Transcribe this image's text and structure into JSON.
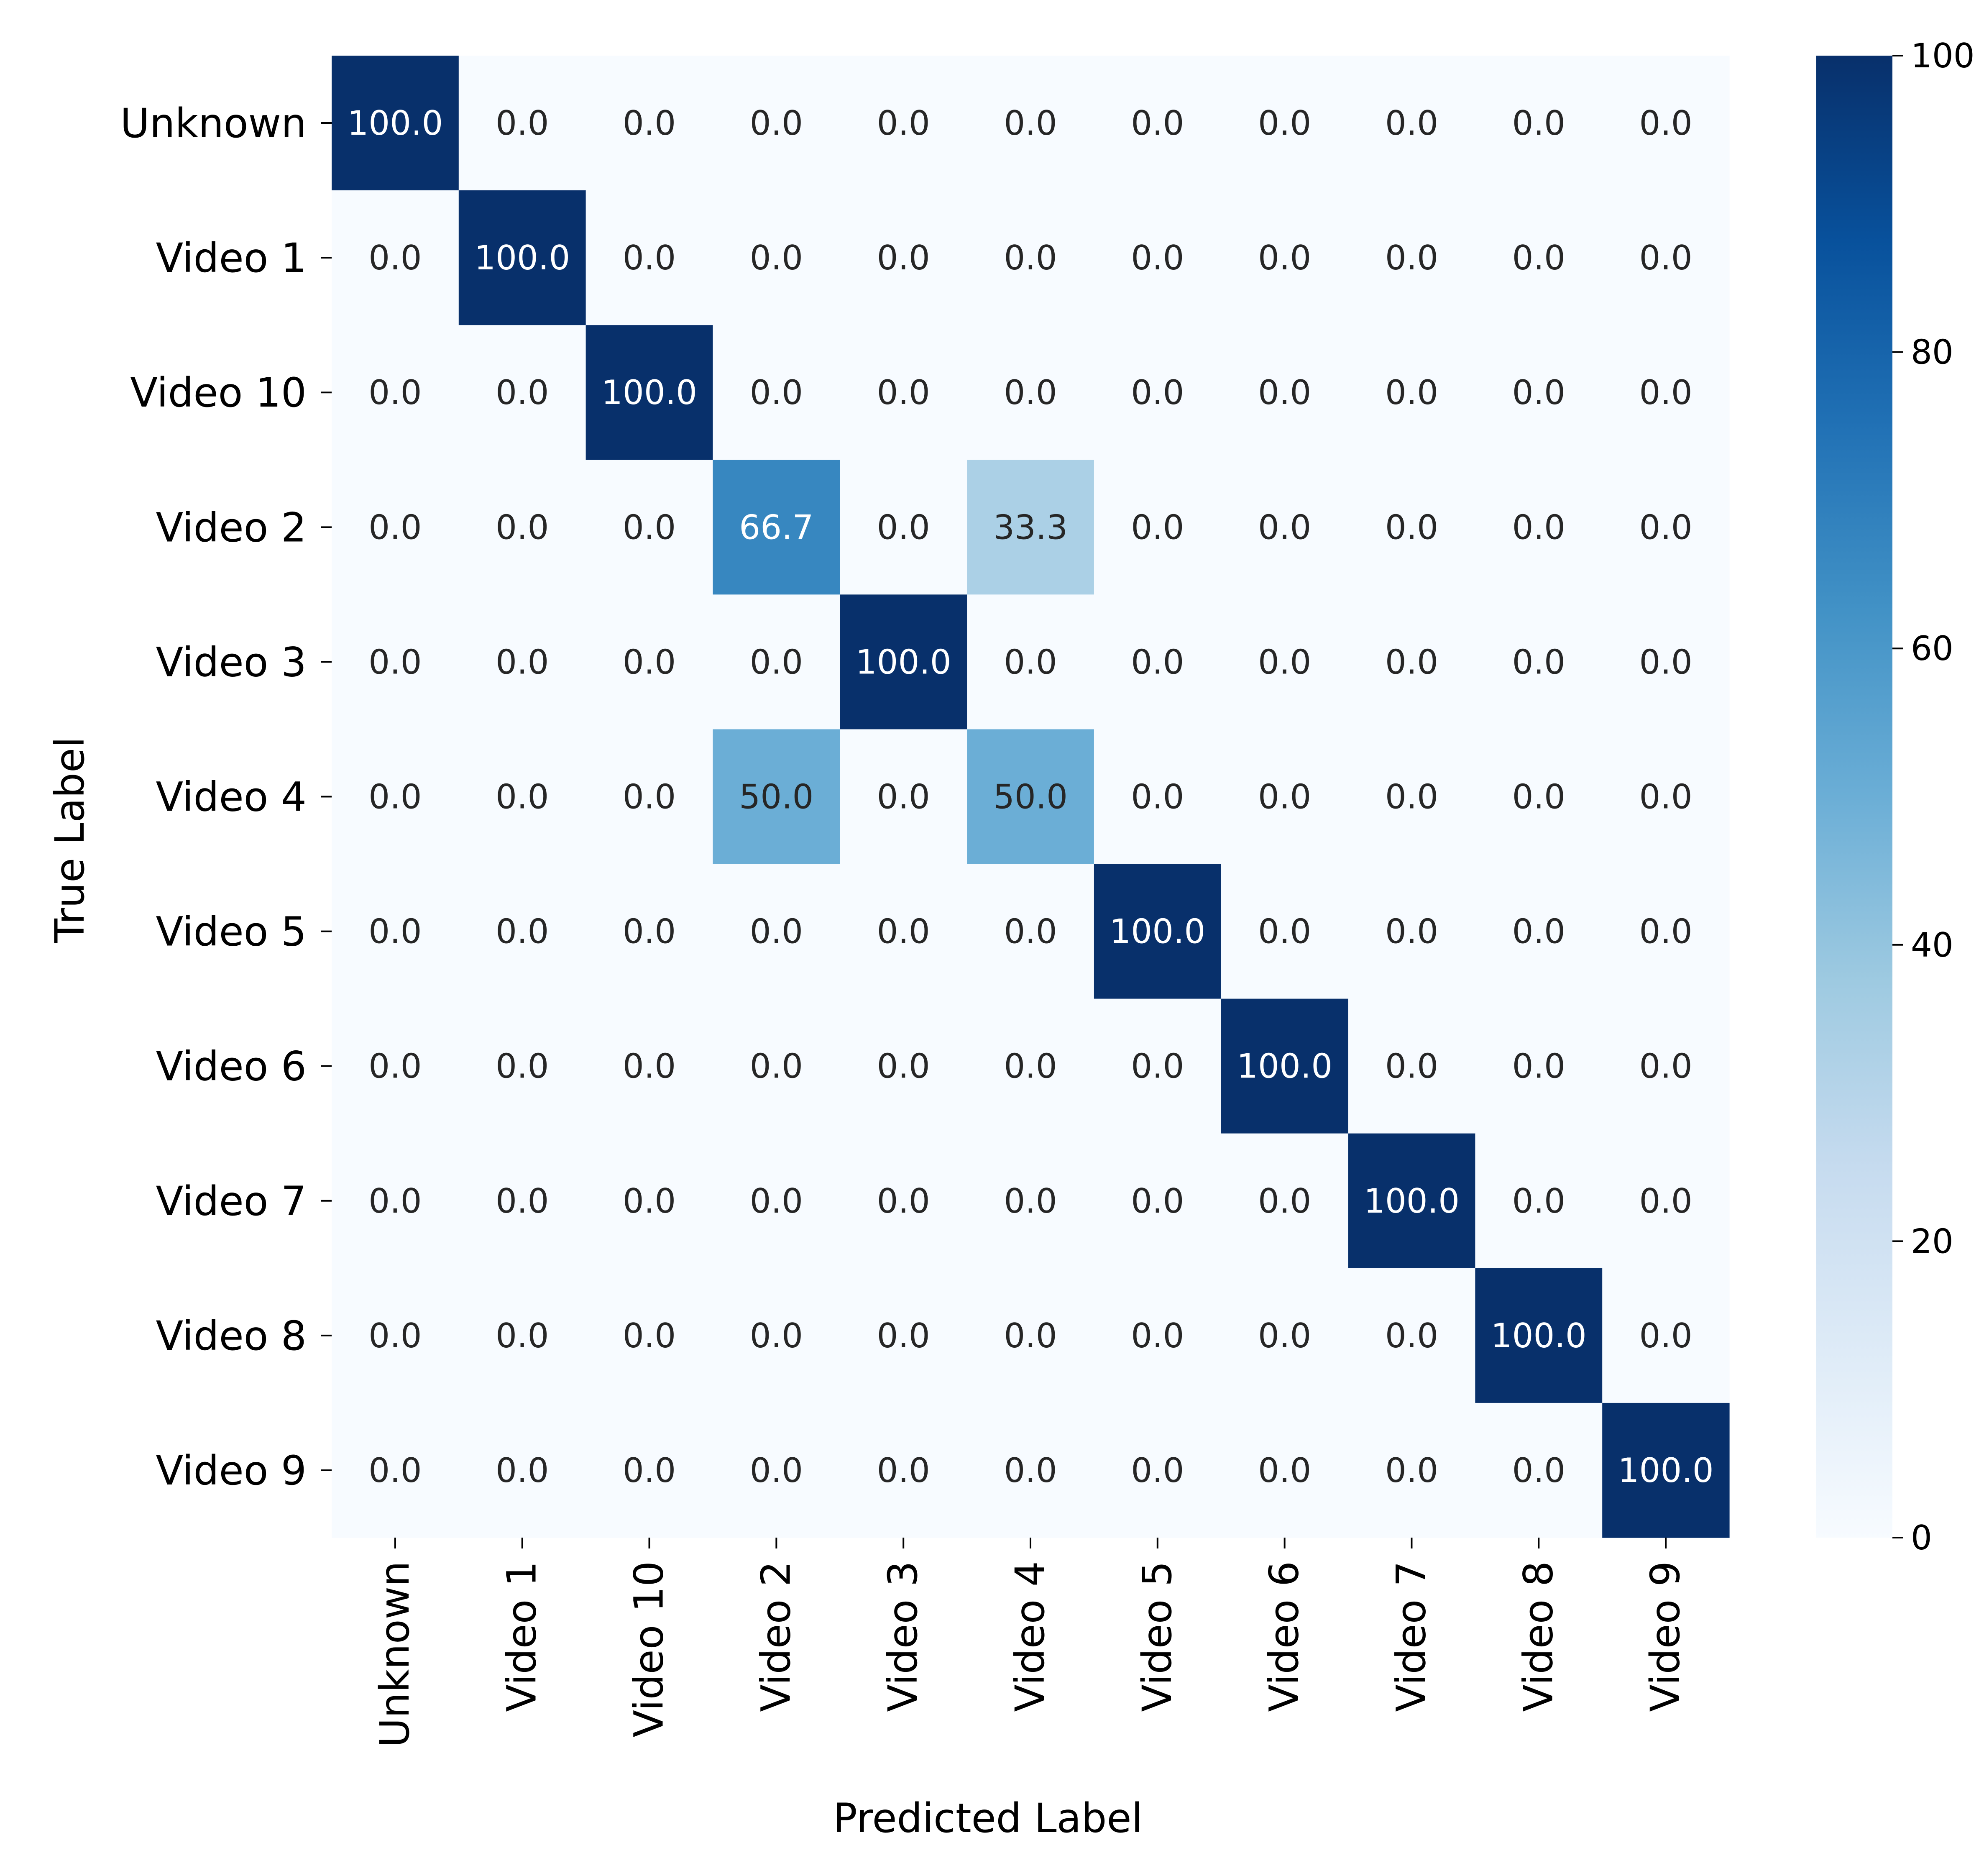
{
  "chart_data": {
    "type": "heatmap",
    "title": "",
    "xlabel": "Predicted Label",
    "ylabel": "True Label",
    "x_categories": [
      "Unknown",
      "Video 1",
      "Video 10",
      "Video 2",
      "Video 3",
      "Video 4",
      "Video 5",
      "Video 6",
      "Video 7",
      "Video 8",
      "Video 9"
    ],
    "y_categories": [
      "Unknown",
      "Video 1",
      "Video 10",
      "Video 2",
      "Video 3",
      "Video 4",
      "Video 5",
      "Video 6",
      "Video 7",
      "Video 8",
      "Video 9"
    ],
    "values": [
      [
        100.0,
        0.0,
        0.0,
        0.0,
        0.0,
        0.0,
        0.0,
        0.0,
        0.0,
        0.0,
        0.0
      ],
      [
        0.0,
        100.0,
        0.0,
        0.0,
        0.0,
        0.0,
        0.0,
        0.0,
        0.0,
        0.0,
        0.0
      ],
      [
        0.0,
        0.0,
        100.0,
        0.0,
        0.0,
        0.0,
        0.0,
        0.0,
        0.0,
        0.0,
        0.0
      ],
      [
        0.0,
        0.0,
        0.0,
        66.7,
        0.0,
        33.3,
        0.0,
        0.0,
        0.0,
        0.0,
        0.0
      ],
      [
        0.0,
        0.0,
        0.0,
        0.0,
        100.0,
        0.0,
        0.0,
        0.0,
        0.0,
        0.0,
        0.0
      ],
      [
        0.0,
        0.0,
        0.0,
        50.0,
        0.0,
        50.0,
        0.0,
        0.0,
        0.0,
        0.0,
        0.0
      ],
      [
        0.0,
        0.0,
        0.0,
        0.0,
        0.0,
        0.0,
        100.0,
        0.0,
        0.0,
        0.0,
        0.0
      ],
      [
        0.0,
        0.0,
        0.0,
        0.0,
        0.0,
        0.0,
        0.0,
        100.0,
        0.0,
        0.0,
        0.0
      ],
      [
        0.0,
        0.0,
        0.0,
        0.0,
        0.0,
        0.0,
        0.0,
        0.0,
        100.0,
        0.0,
        0.0
      ],
      [
        0.0,
        0.0,
        0.0,
        0.0,
        0.0,
        0.0,
        0.0,
        0.0,
        0.0,
        100.0,
        0.0
      ],
      [
        0.0,
        0.0,
        0.0,
        0.0,
        0.0,
        0.0,
        0.0,
        0.0,
        0.0,
        0.0,
        100.0
      ]
    ],
    "value_format": "0.0",
    "colormap": "Blues",
    "colorbar": {
      "range": [
        0,
        100
      ],
      "ticks": [
        0,
        20,
        40,
        60,
        80,
        100
      ]
    }
  }
}
